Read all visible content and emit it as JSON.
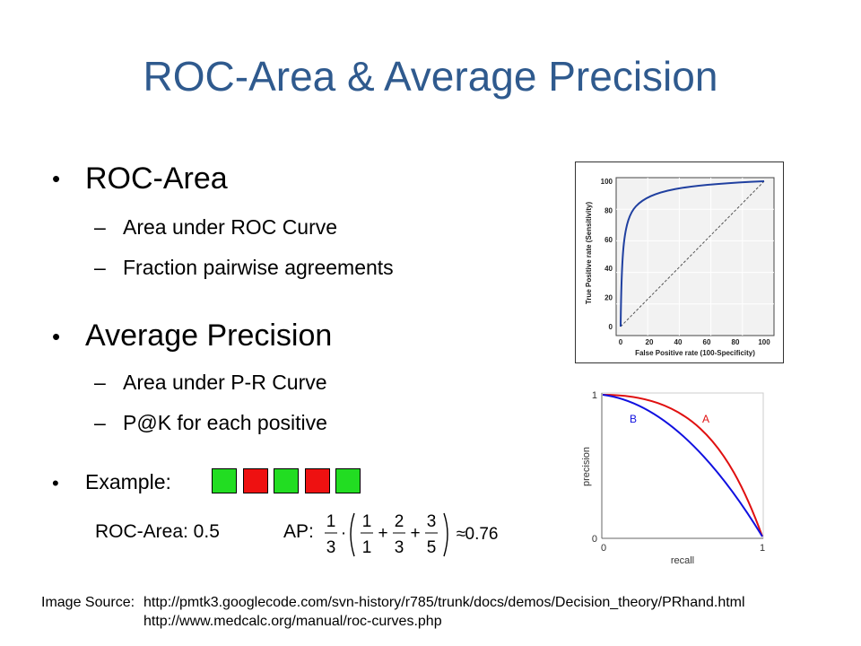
{
  "title": "ROC-Area & Average Precision",
  "bullets": [
    {
      "label": "ROC-Area",
      "subs": [
        "Area under ROC Curve",
        "Fraction pairwise agreements"
      ]
    },
    {
      "label": "Average Precision",
      "subs": [
        "Area under P-R Curve",
        "P@K for each positive"
      ]
    }
  ],
  "example": {
    "label": "Example:",
    "boxes": [
      "green",
      "red",
      "green",
      "red",
      "green"
    ],
    "box_colors": {
      "green": "#22dd22",
      "red": "#ee1111"
    },
    "roc_text": "ROC-Area: 0.5",
    "ap_label": "AP:",
    "formula": {
      "lead_num": "1",
      "lead_den": "3",
      "terms": [
        [
          "1",
          "1"
        ],
        [
          "2",
          "3"
        ],
        [
          "3",
          "5"
        ]
      ],
      "approx": "0.76"
    }
  },
  "roc_chart": {
    "ylabel": "True Positive rate (Sensitivity)",
    "xlabel": "False Positive rate (100-Specificity)",
    "xticks": [
      "0",
      "20",
      "40",
      "60",
      "80",
      "100"
    ],
    "yticks": [
      "0",
      "20",
      "40",
      "60",
      "80",
      "100"
    ]
  },
  "pr_chart": {
    "ylabel": "precision",
    "xlabel": "recall",
    "x_ticks": [
      "0",
      "1"
    ],
    "y_ticks": [
      "0",
      "1"
    ],
    "curve_labels": {
      "A": "A",
      "B": "B"
    },
    "colors": {
      "A": "#e01010",
      "B": "#1010e0"
    }
  },
  "source": {
    "label": "Image Source:",
    "url1": "http://pmtk3.googlecode.com/svn-history/r785/trunk/docs/demos/Decision_theory/PRhand.html",
    "url2": "http://www.medcalc.org/manual/roc-curves.php"
  }
}
